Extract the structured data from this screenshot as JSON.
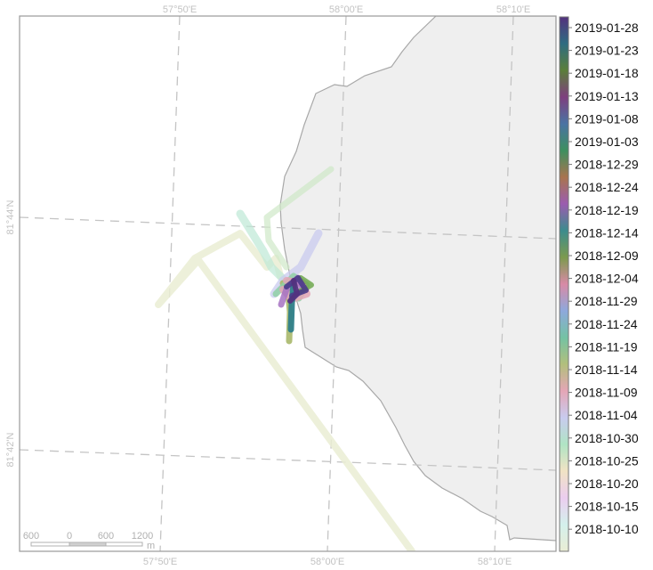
{
  "map": {
    "longitude_labels": [
      "57°50'E",
      "58°00'E",
      "58°10'E"
    ],
    "latitude_labels": [
      "81°44'N",
      "81°42'N"
    ]
  },
  "scale_bar": {
    "labels": [
      "600",
      "0",
      "600",
      "1200"
    ],
    "unit": "m"
  },
  "legend": {
    "dates": [
      "2019-01-28",
      "2019-01-23",
      "2019-01-18",
      "2019-01-13",
      "2019-01-08",
      "2019-01-03",
      "2018-12-29",
      "2018-12-24",
      "2018-12-19",
      "2018-12-14",
      "2018-12-09",
      "2018-12-04",
      "2018-11-29",
      "2018-11-24",
      "2018-11-19",
      "2018-11-14",
      "2018-11-09",
      "2018-11-04",
      "2018-10-30",
      "2018-10-25",
      "2018-10-20",
      "2018-10-15",
      "2018-10-10"
    ]
  },
  "colors": {
    "land": "#efefef",
    "land_outline": "#a8a8a8",
    "graticule": "#c4c4c4",
    "track_early": "#e6e7c8",
    "track_mid": "#b8e6d3",
    "track_late": "#4a3a8a",
    "colorbar_stops": [
      "#53317e",
      "#2f6c80",
      "#5a7e3a",
      "#7e3f7e",
      "#4a73a3",
      "#3e8f5f",
      "#a9744e",
      "#9b5cb0",
      "#3c8c8d",
      "#7c9a4e",
      "#d88aa6",
      "#8ea8dc",
      "#74c2a4",
      "#b2bf7c",
      "#e4a6b6",
      "#c9cbef",
      "#b0e4c4",
      "#f1e3c4",
      "#ebcdef",
      "#d4f0ec",
      "#eaedd4"
    ]
  }
}
